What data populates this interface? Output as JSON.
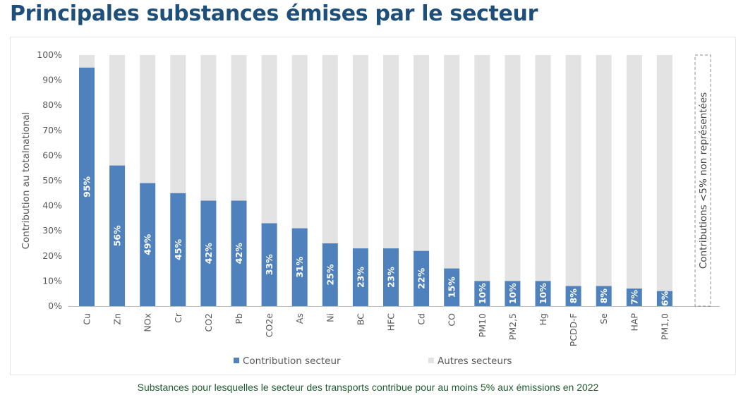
{
  "page": {
    "title": "Principales substances émises par le secteur",
    "caption": "Substances pour lesquelles le secteur des transports contribue pour au moins 5% aux émissions en 2022"
  },
  "chart_data": {
    "type": "bar",
    "stacked": true,
    "title": "",
    "xlabel": "",
    "ylabel": "Contribution au totalnational",
    "ylim": [
      0,
      100
    ],
    "yticks": [
      "0%",
      "10%",
      "20%",
      "30%",
      "40%",
      "50%",
      "60%",
      "70%",
      "80%",
      "90%",
      "100%"
    ],
    "categories": [
      "Cu",
      "Zn",
      "NOx",
      "Cr",
      "CO2",
      "Pb",
      "CO2e",
      "As",
      "Ni",
      "BC",
      "HFC",
      "Cd",
      "CO",
      "PM10",
      "PM2,5",
      "Hg",
      "PCDD-F",
      "Se",
      "HAP",
      "PM1,0"
    ],
    "series": [
      {
        "name": "Contribution secteur",
        "color": "#4f81bd",
        "values": [
          95,
          56,
          49,
          45,
          42,
          42,
          33,
          31,
          25,
          23,
          23,
          22,
          15,
          10,
          10,
          10,
          8,
          8,
          7,
          6
        ],
        "labels": [
          "95%",
          "56%",
          "49%",
          "45%",
          "42%",
          "42%",
          "33%",
          "31%",
          "25%",
          "23%",
          "23%",
          "22%",
          "15%",
          "10%",
          "10%",
          "10%",
          "8%",
          "8%",
          "7%",
          "6%"
        ]
      },
      {
        "name": "Autres secteurs",
        "color": "#e3e3e3",
        "values": [
          5,
          44,
          51,
          55,
          58,
          58,
          67,
          69,
          75,
          77,
          77,
          78,
          85,
          90,
          90,
          90,
          92,
          92,
          93,
          94
        ]
      }
    ],
    "annotation": "Contributions <5% non représentées",
    "legend_position": "bottom",
    "grid": false
  }
}
